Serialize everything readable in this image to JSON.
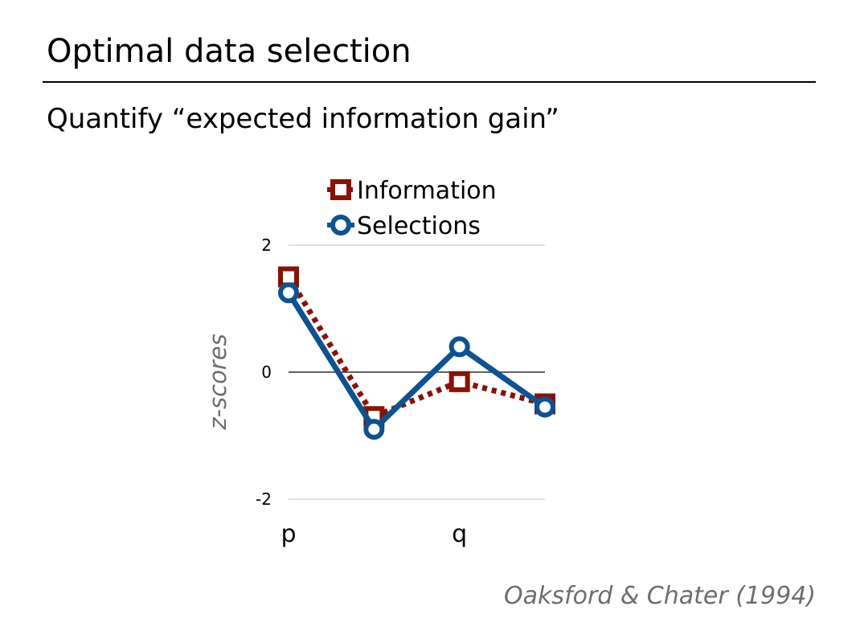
{
  "slide": {
    "title": "Optimal data selection",
    "subtitle": "Quantify “expected information gain”",
    "citation": "Oaksford & Chater (1994)"
  },
  "chart_data": {
    "type": "line",
    "ylabel": "z-scores",
    "xlabel": "",
    "ylim": [
      -2,
      2
    ],
    "yticks": [
      2,
      0,
      -2
    ],
    "x_tick_labels": [
      "p",
      "",
      "q",
      ""
    ],
    "grid": true,
    "legend_position": "top",
    "series": [
      {
        "name": "Information",
        "color": "#8b1100",
        "line_style": "dotted",
        "marker": "square",
        "values": [
          1.5,
          -0.7,
          -0.15,
          -0.5
        ]
      },
      {
        "name": "Selections",
        "color": "#0b5394",
        "line_style": "solid",
        "marker": "circle",
        "values": [
          1.25,
          -0.9,
          0.4,
          -0.55
        ]
      }
    ]
  }
}
